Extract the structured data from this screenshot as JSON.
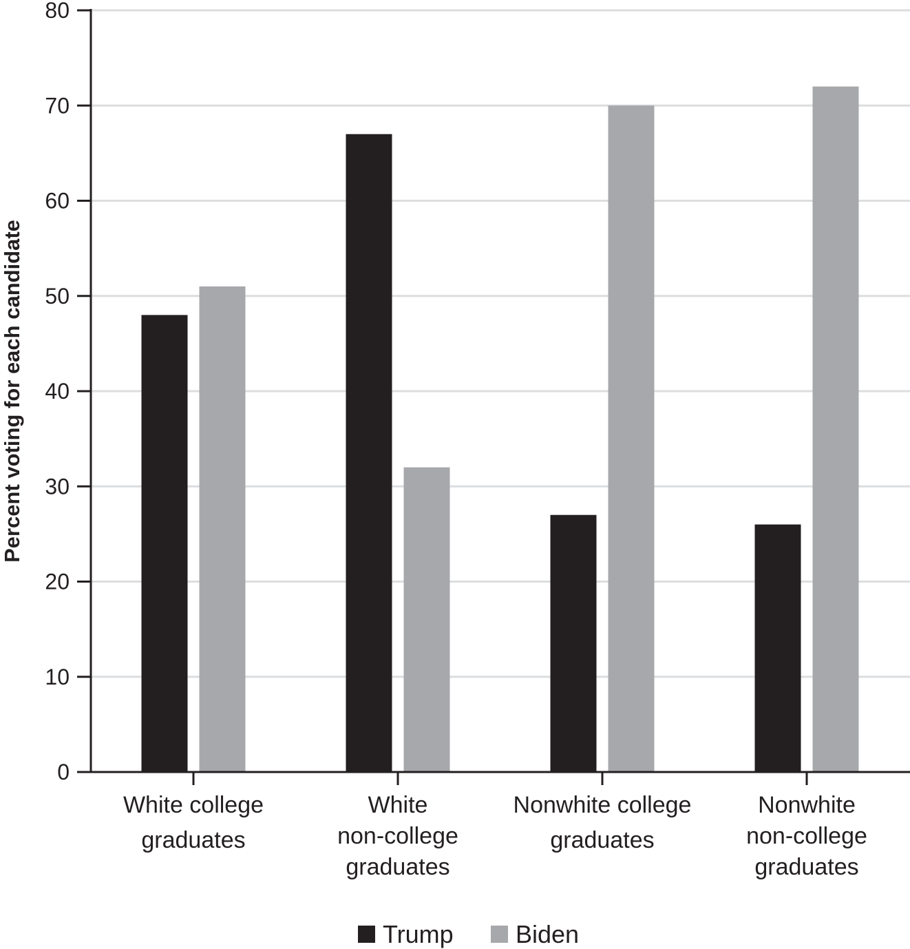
{
  "chart_data": {
    "type": "bar",
    "title": "",
    "xlabel": "",
    "ylabel": "Percent voting for each candidate",
    "ylim": [
      0,
      80
    ],
    "yticks": [
      0,
      10,
      20,
      30,
      40,
      50,
      60,
      70,
      80
    ],
    "grid": true,
    "legend_position": "bottom",
    "categories": [
      [
        "White college",
        "graduates"
      ],
      [
        "White",
        "non-college",
        "graduates"
      ],
      [
        "Nonwhite college",
        "graduates"
      ],
      [
        "Nonwhite",
        "non-college",
        "graduates"
      ]
    ],
    "series": [
      {
        "name": "Trump",
        "color": "#231f20",
        "values": [
          48,
          67,
          27,
          26
        ]
      },
      {
        "name": "Biden",
        "color": "#a7a8ab",
        "values": [
          51,
          32,
          70,
          72
        ]
      }
    ]
  }
}
